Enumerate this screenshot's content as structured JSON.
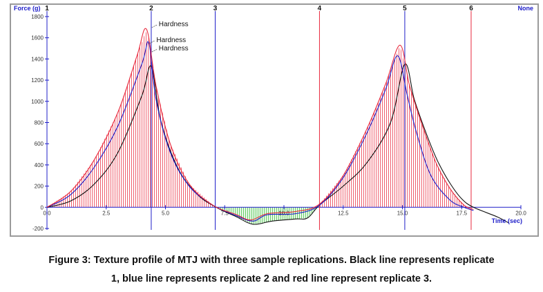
{
  "chart_data": {
    "type": "line",
    "ylabel": "Force (g)",
    "xlabel": "Time (sec)",
    "xlim": [
      0,
      20
    ],
    "ylim": [
      -200,
      1800
    ],
    "x_ticks": [
      0,
      2.5,
      5,
      7.5,
      10,
      12.5,
      15,
      17.5,
      20
    ],
    "x_tick_labels": [
      "0.0",
      "2.5",
      "5.0",
      "7.5",
      "10.0",
      "12.5",
      "15.0",
      "17.5",
      "20.0"
    ],
    "y_ticks": [
      -200,
      0,
      200,
      400,
      600,
      800,
      1000,
      1200,
      1400,
      1600,
      1800
    ],
    "markers": [
      {
        "label": "1",
        "x": 0,
        "color": "#1c1cc8"
      },
      {
        "label": "2",
        "x": 4.4,
        "color": "#1c1cc8"
      },
      {
        "label": "3",
        "x": 7.1,
        "color": "#1c1cc8"
      },
      {
        "label": "4",
        "x": 11.5,
        "color": "#e8283c"
      },
      {
        "label": "5",
        "x": 15.1,
        "color": "#1c1cc8"
      },
      {
        "label": "6",
        "x": 17.9,
        "color": "#e8283c"
      }
    ],
    "corner_label": "None",
    "annotations": [
      "Hardness",
      "Hardness",
      "Hardness"
    ],
    "series": [
      {
        "color": "#111111",
        "x": [
          0,
          1,
          2,
          3,
          4,
          4.4,
          4.8,
          5.5,
          6.3,
          7.1,
          8.0,
          8.7,
          9.5,
          10.5,
          11.0,
          11.5,
          12.5,
          13.5,
          14.5,
          15.1,
          15.5,
          16.0,
          16.5,
          17.0,
          17.5,
          18.0,
          19.0,
          19.5
        ],
        "y": [
          0,
          60,
          220,
          520,
          1050,
          1330,
          820,
          380,
          130,
          5,
          -90,
          -160,
          -130,
          -110,
          -100,
          20,
          200,
          420,
          800,
          1350,
          1020,
          700,
          430,
          230,
          80,
          0,
          -90,
          -150
        ]
      },
      {
        "color": "#1c1cc8",
        "x": [
          0,
          1,
          2,
          3,
          4,
          4.3,
          4.6,
          5.2,
          6.0,
          7.0,
          8.0,
          8.7,
          9.3,
          10.5,
          11.5,
          12.5,
          13.5,
          14.3,
          14.8,
          15.2,
          15.6,
          16.2,
          17.0,
          17.6,
          18.0
        ],
        "y": [
          0,
          120,
          380,
          770,
          1350,
          1550,
          1020,
          520,
          200,
          20,
          -80,
          -130,
          -70,
          -60,
          20,
          280,
          700,
          1120,
          1430,
          1060,
          700,
          300,
          70,
          0,
          -30
        ]
      },
      {
        "color": "#e8283c",
        "x": [
          0,
          1,
          2,
          3,
          3.8,
          4.2,
          4.6,
          5.2,
          6.0,
          7.0,
          8.0,
          8.6,
          9.3,
          10.5,
          11.5,
          12.5,
          13.5,
          14.3,
          14.9,
          15.3,
          15.8,
          16.4,
          17.0,
          17.6,
          18.0
        ],
        "y": [
          0,
          150,
          450,
          900,
          1430,
          1680,
          1150,
          600,
          220,
          20,
          -70,
          -120,
          -60,
          -40,
          30,
          300,
          740,
          1170,
          1530,
          1150,
          800,
          430,
          180,
          20,
          -20
        ]
      }
    ]
  },
  "caption": {
    "line1": "Figure 3: Texture profile of MTJ with three sample replications. Black line represents replicate",
    "line2": "1, blue line represents replicate 2 and red line represent replicate 3."
  }
}
